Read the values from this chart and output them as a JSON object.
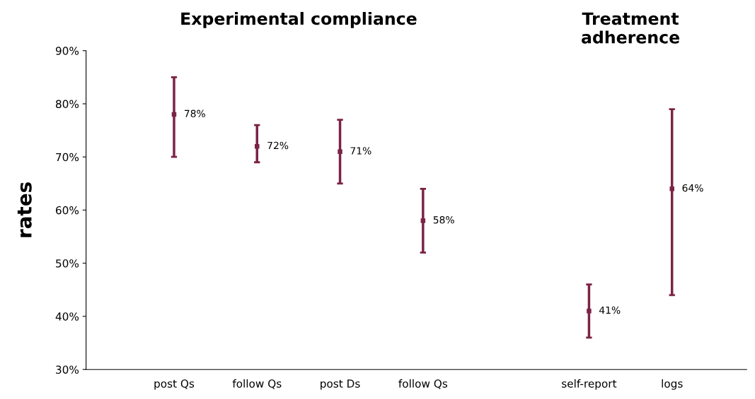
{
  "chart_data": {
    "type": "scatter",
    "ylabel": "rates",
    "annotations": [
      "Experimental compliance",
      "Treatment\nadherence"
    ],
    "categories": [
      "post Qs",
      "follow Qs",
      "post Ds",
      "follow Qs",
      null,
      "self-report",
      "logs"
    ],
    "series": [
      {
        "color": "#7b2346",
        "values": [
          78,
          72,
          71,
          58,
          null,
          41,
          64
        ],
        "errors": [
          [
            70,
            85
          ],
          [
            69,
            76
          ],
          [
            65,
            77
          ],
          [
            52,
            64
          ],
          null,
          [
            36,
            46
          ],
          [
            44,
            79
          ]
        ],
        "value_labels": [
          "78%",
          "72%",
          "71%",
          "58%",
          null,
          "41%",
          "64%"
        ]
      }
    ],
    "ylim": [
      30,
      90
    ],
    "yticks": [
      {
        "value": 30,
        "label": "30%"
      },
      {
        "value": 40,
        "label": "40%"
      },
      {
        "value": 50,
        "label": "50%"
      },
      {
        "value": 60,
        "label": "60%"
      },
      {
        "value": 70,
        "label": "70%"
      },
      {
        "value": 80,
        "label": "80%"
      },
      {
        "value": 90,
        "label": "90%"
      }
    ],
    "grid": false,
    "marker": "square"
  }
}
